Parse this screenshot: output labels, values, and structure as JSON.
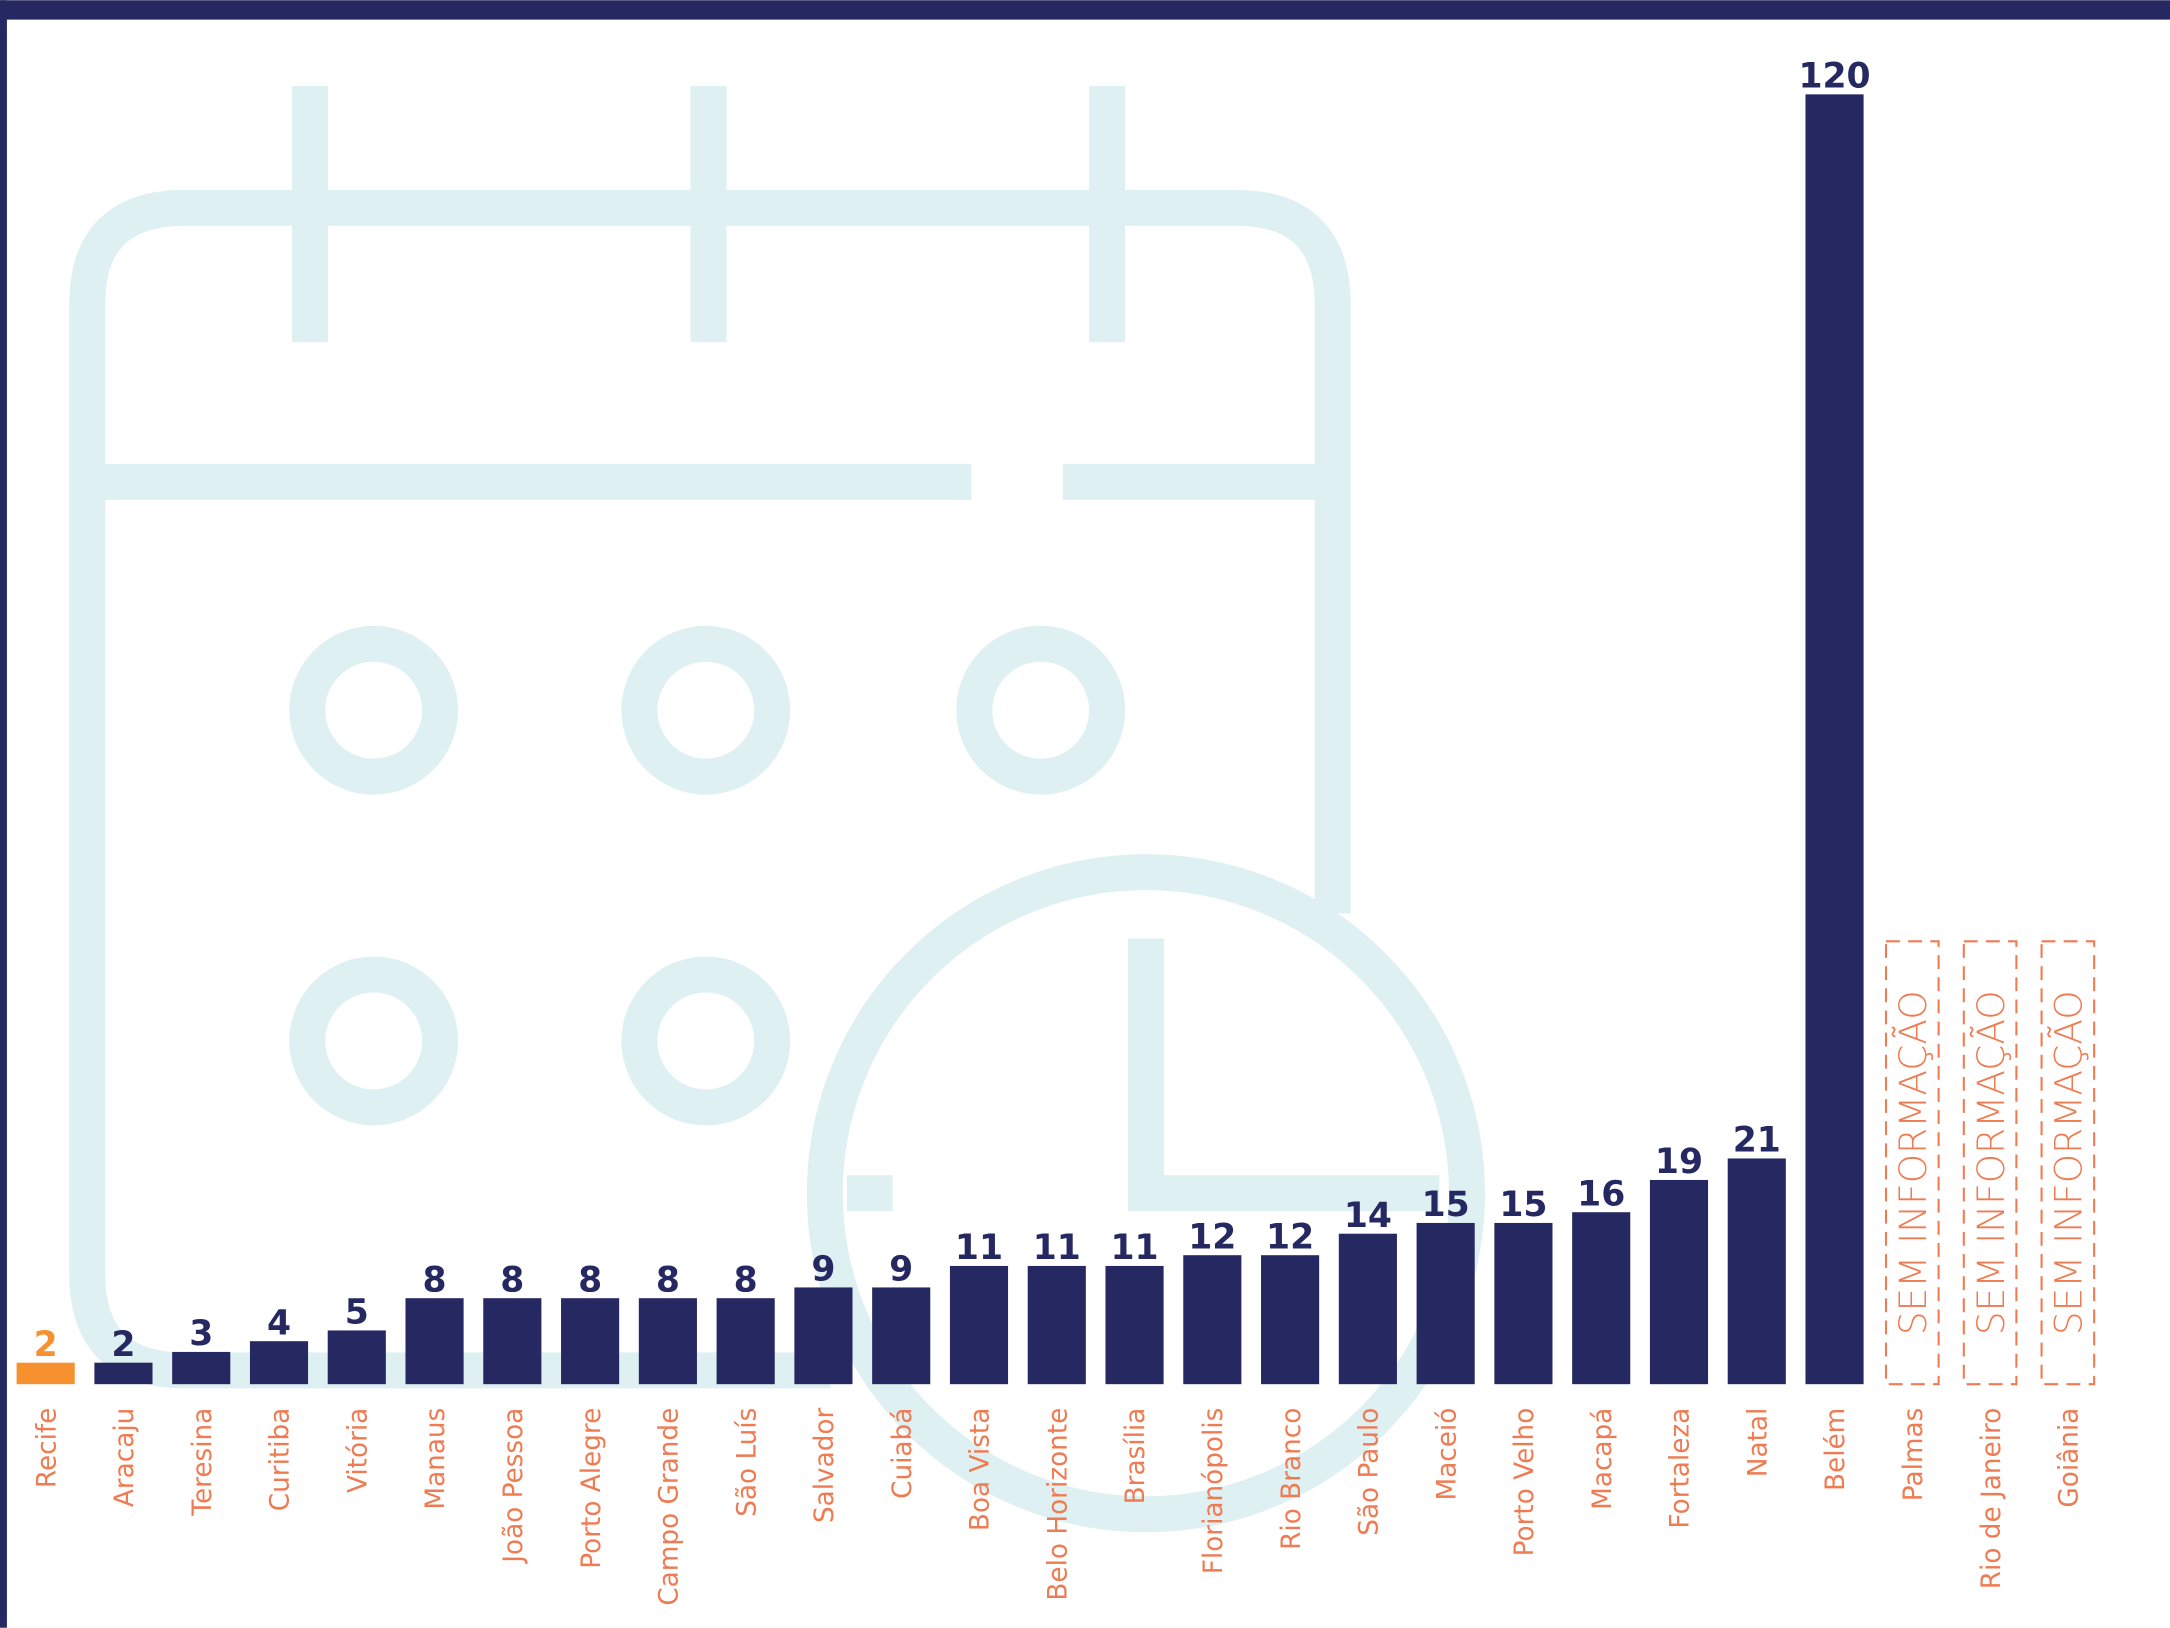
{
  "chart_data": {
    "type": "bar",
    "categories": [
      "Recife",
      "Aracaju",
      "Teresina",
      "Curitiba",
      "Vitória",
      "Manaus",
      "João Pessoa",
      "Porto Alegre",
      "Campo Grande",
      "São Luís",
      "Salvador",
      "Cuiabá",
      "Boa Vista",
      "Belo Horizonte",
      "Brasília",
      "Florianópolis",
      "Rio Branco",
      "São Paulo",
      "Maceió",
      "Porto Velho",
      "Macapá",
      "Fortaleza",
      "Natal",
      "Belém",
      "Palmas",
      "Rio de Janeiro",
      "Goiânia"
    ],
    "values": [
      2,
      2,
      3,
      4,
      5,
      8,
      8,
      8,
      8,
      8,
      9,
      9,
      11,
      11,
      11,
      12,
      12,
      14,
      15,
      15,
      16,
      19,
      21,
      120,
      null,
      null,
      null
    ],
    "colors": [
      "#f7902f",
      "#262861",
      "#262861",
      "#262861",
      "#262861",
      "#262861",
      "#262861",
      "#262861",
      "#262861",
      "#262861",
      "#262861",
      "#262861",
      "#262861",
      "#262861",
      "#262861",
      "#262861",
      "#262861",
      "#262861",
      "#262861",
      "#262861",
      "#262861",
      "#262861",
      "#262861",
      "#262861",
      "#ee7b52",
      "#ee7b52",
      "#ee7b52"
    ],
    "missing_label": "SEM INFORMAÇÃO",
    "category_color": "#ee7b52",
    "ylim": [
      0,
      120
    ]
  }
}
